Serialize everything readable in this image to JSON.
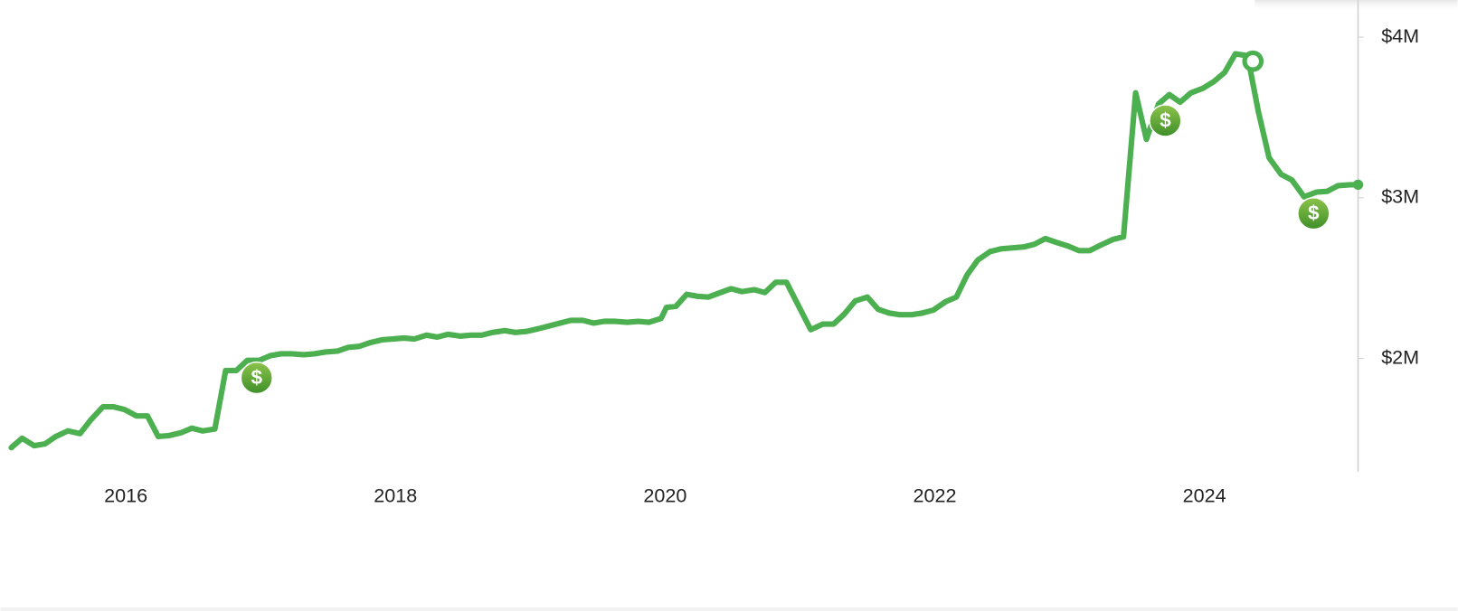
{
  "chart_data": {
    "type": "line",
    "x": [
      2015.15,
      2015.23,
      2015.32,
      2015.4,
      2015.48,
      2015.57,
      2015.66,
      2015.74,
      2015.83,
      2015.91,
      2015.99,
      2016.08,
      2016.16,
      2016.24,
      2016.32,
      2016.41,
      2016.49,
      2016.57,
      2016.66,
      2016.74,
      2016.82,
      2016.9,
      2016.99,
      2017.07,
      2017.15,
      2017.23,
      2017.32,
      2017.4,
      2017.48,
      2017.57,
      2017.65,
      2017.73,
      2017.81,
      2017.9,
      2017.98,
      2018.06,
      2018.14,
      2018.23,
      2018.31,
      2018.39,
      2018.48,
      2018.56,
      2018.64,
      2018.72,
      2018.81,
      2018.89,
      2018.97,
      2019.06,
      2019.14,
      2019.22,
      2019.3,
      2019.39,
      2019.47,
      2019.55,
      2019.63,
      2019.72,
      2019.8,
      2019.88,
      2019.97,
      2020.01,
      2020.08,
      2020.16,
      2020.24,
      2020.32,
      2020.41,
      2020.49,
      2020.57,
      2020.66,
      2020.74,
      2020.82,
      2020.9,
      2021.08,
      2021.17,
      2021.25,
      2021.33,
      2021.41,
      2021.5,
      2021.58,
      2021.66,
      2021.74,
      2021.83,
      2021.91,
      2021.99,
      2022.08,
      2022.16,
      2022.24,
      2022.32,
      2022.41,
      2022.49,
      2022.57,
      2022.66,
      2022.74,
      2022.82,
      2022.9,
      2022.99,
      2023.07,
      2023.15,
      2023.23,
      2023.32,
      2023.4,
      2023.49,
      2023.57,
      2023.66,
      2023.74,
      2023.82,
      2023.9,
      2023.99,
      2024.07,
      2024.15,
      2024.23,
      2024.32,
      2024.4,
      2024.48,
      2024.57,
      2024.65,
      2024.74,
      2024.83,
      2024.91,
      2024.99,
      2025.08,
      2025.14
    ],
    "series": [
      {
        "color": "#4caf50",
        "values": [
          1445000,
          1503000,
          1457000,
          1468000,
          1514000,
          1549000,
          1532000,
          1618000,
          1699000,
          1699000,
          1682000,
          1642000,
          1642000,
          1514000,
          1520000,
          1538000,
          1566000,
          1549000,
          1561000,
          1925000,
          1925000,
          1988000,
          1988000,
          2017000,
          2029000,
          2029000,
          2023000,
          2029000,
          2040000,
          2046000,
          2069000,
          2075000,
          2098000,
          2116000,
          2121000,
          2127000,
          2121000,
          2145000,
          2133000,
          2150000,
          2139000,
          2145000,
          2145000,
          2162000,
          2173000,
          2162000,
          2168000,
          2185000,
          2202000,
          2220000,
          2237000,
          2237000,
          2220000,
          2231000,
          2231000,
          2225000,
          2231000,
          2225000,
          2249000,
          2318000,
          2324000,
          2399000,
          2387000,
          2382000,
          2410000,
          2434000,
          2416000,
          2428000,
          2410000,
          2474000,
          2474000,
          2179000,
          2214000,
          2214000,
          2277000,
          2358000,
          2382000,
          2306000,
          2283000,
          2272000,
          2272000,
          2283000,
          2301000,
          2353000,
          2382000,
          2520000,
          2613000,
          2665000,
          2682000,
          2688000,
          2694000,
          2711000,
          2746000,
          2723000,
          2699000,
          2671000,
          2671000,
          2705000,
          2740000,
          2757000,
          3653000,
          3364000,
          3584000,
          3642000,
          3595000,
          3653000,
          3682000,
          3723000,
          3780000,
          3896000,
          3884000,
          3538000,
          3249000,
          3145000,
          3110000,
          3006000,
          3035000,
          3040000,
          3075000,
          3081000,
          3081000
        ]
      }
    ],
    "xlim": [
      2015.07,
      2025.14
    ],
    "ylim": [
      1295000,
      4231000
    ],
    "xticks": [
      2016,
      2018,
      2020,
      2022,
      2024
    ],
    "yticks": [
      {
        "value": 2000000,
        "label": "$2M"
      },
      {
        "value": 3000000,
        "label": "$3M"
      },
      {
        "value": 4000000,
        "label": "$4M"
      }
    ],
    "markers": [
      {
        "x": 2016.97,
        "value": 1879000,
        "label": "$"
      },
      {
        "x": 2023.71,
        "value": 3480000,
        "label": "$"
      },
      {
        "x": 2024.81,
        "value": 2902000,
        "label": "$"
      }
    ],
    "highlight": {
      "x": 2024.36,
      "value": 3850000
    }
  }
}
